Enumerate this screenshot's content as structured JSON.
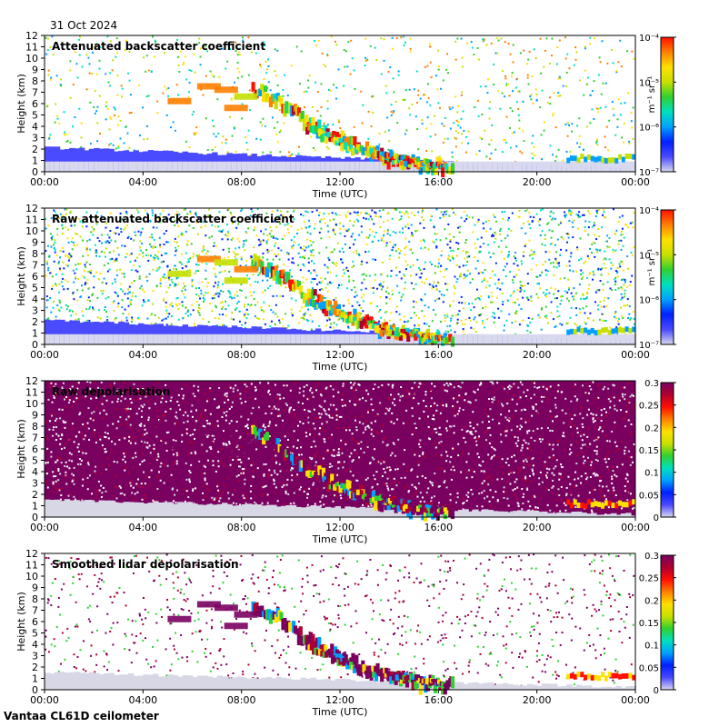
{
  "header": {
    "date": "31 Oct 2024"
  },
  "footer": {
    "instrument": "Vantaa CL61D ceilometer"
  },
  "colors": {
    "background": "#ffffff",
    "clear_air": "#d7d7e6",
    "scale": [
      "#d8d8ee",
      "#4a4aff",
      "#0020ff",
      "#00a0ff",
      "#00e0c0",
      "#30d030",
      "#c8e000",
      "#ffe000",
      "#ff8000",
      "#ff1000",
      "#b00030",
      "#7a0060"
    ]
  },
  "chart_data": [
    {
      "type": "heatmap",
      "title": "Attenuated backscatter coefficient",
      "xlabel": "Time (UTC)",
      "ylabel": "Height (km)",
      "x_ticks": [
        "00:00",
        "04:00",
        "08:00",
        "12:00",
        "16:00",
        "20:00",
        "00:00"
      ],
      "xlim_hours": [
        0,
        24
      ],
      "y_ticks": [
        "0",
        "1",
        "2",
        "3",
        "4",
        "5",
        "6",
        "7",
        "8",
        "9",
        "10",
        "11",
        "12"
      ],
      "ylim_km": [
        0,
        12
      ],
      "colorbar": {
        "scale": "log",
        "unit": "m⁻¹ sr⁻¹",
        "ticks": [
          "10⁻⁴",
          "10⁻⁵",
          "10⁻⁶",
          "10⁻⁷"
        ],
        "range": [
          1e-07,
          0.0001
        ]
      }
    },
    {
      "type": "heatmap",
      "title": "Raw attenuated backscatter coefficient",
      "xlabel": "Time (UTC)",
      "ylabel": "Height (km)",
      "x_ticks": [
        "00:00",
        "04:00",
        "08:00",
        "12:00",
        "16:00",
        "20:00",
        "00:00"
      ],
      "xlim_hours": [
        0,
        24
      ],
      "y_ticks": [
        "0",
        "1",
        "2",
        "3",
        "4",
        "5",
        "6",
        "7",
        "8",
        "9",
        "10",
        "11",
        "12"
      ],
      "ylim_km": [
        0,
        12
      ],
      "colorbar": {
        "scale": "log",
        "unit": "m⁻¹ sr⁻¹",
        "ticks": [
          "10⁻⁴",
          "10⁻⁵",
          "10⁻⁶",
          "10⁻⁷"
        ],
        "range": [
          1e-07,
          0.0001
        ]
      }
    },
    {
      "type": "heatmap",
      "title": "Raw depolarisation",
      "xlabel": "Time (UTC)",
      "ylabel": "Height (km)",
      "x_ticks": [
        "00:00",
        "04:00",
        "08:00",
        "12:00",
        "16:00",
        "20:00",
        "00:00"
      ],
      "xlim_hours": [
        0,
        24
      ],
      "y_ticks": [
        "0",
        "1",
        "2",
        "3",
        "4",
        "5",
        "6",
        "7",
        "8",
        "9",
        "10",
        "11",
        "12"
      ],
      "ylim_km": [
        0,
        12
      ],
      "colorbar": {
        "scale": "linear",
        "unit": "",
        "ticks": [
          "0.3",
          "0.25",
          "0.2",
          "0.15",
          "0.1",
          "0.05",
          "0"
        ],
        "range": [
          0,
          0.3
        ]
      }
    },
    {
      "type": "heatmap",
      "title": "Smoothed lidar depolarisation",
      "xlabel": "Time (UTC)",
      "ylabel": "Height (km)",
      "x_ticks": [
        "00:00",
        "04:00",
        "08:00",
        "12:00",
        "16:00",
        "20:00",
        "00:00"
      ],
      "xlim_hours": [
        0,
        24
      ],
      "y_ticks": [
        "0",
        "1",
        "2",
        "3",
        "4",
        "5",
        "6",
        "7",
        "8",
        "9",
        "10",
        "11",
        "12"
      ],
      "ylim_km": [
        0,
        12
      ],
      "colorbar": {
        "scale": "linear",
        "unit": "",
        "ticks": [
          "0.3",
          "0.25",
          "0.2",
          "0.15",
          "0.1",
          "0.05",
          "0"
        ],
        "range": [
          0,
          0.3
        ]
      }
    }
  ]
}
